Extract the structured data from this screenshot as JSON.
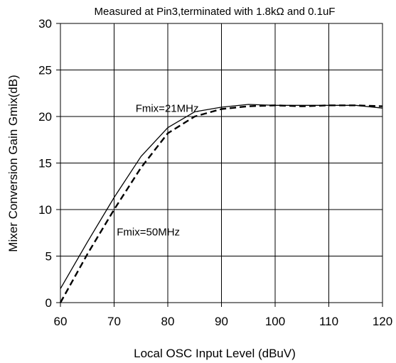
{
  "chart_data": {
    "type": "line",
    "title": "Measured at Pin3,terminated with 1.8kΩ and 0.1uF",
    "xlabel": "Local OSC Input Level (dBuV)",
    "ylabel": "Mixer Conversion Gain Gmix(dB)",
    "xlim": [
      60,
      120
    ],
    "ylim": [
      0,
      30
    ],
    "xticks": [
      "60",
      "70",
      "80",
      "90",
      "100",
      "110",
      "120"
    ],
    "yticks": [
      "0",
      "5",
      "10",
      "15",
      "20",
      "25",
      "30"
    ],
    "grid": true,
    "legend": "none",
    "series": [
      {
        "name": "Fmix=21MHz",
        "style": "solid",
        "color": "#000000",
        "x": [
          60,
          65,
          70,
          75,
          80,
          85,
          90,
          95,
          100,
          105,
          110,
          115,
          120
        ],
        "y": [
          1.5,
          6.5,
          11.3,
          15.7,
          18.8,
          20.5,
          21.0,
          21.3,
          21.2,
          21.2,
          21.2,
          21.2,
          20.9
        ]
      },
      {
        "name": "Fmix=50MHz",
        "style": "dashed",
        "color": "#000000",
        "x": [
          60,
          65,
          70,
          75,
          80,
          85,
          90,
          95,
          100,
          105,
          110,
          115,
          120
        ],
        "y": [
          0.0,
          5.2,
          10.0,
          14.5,
          18.2,
          20.0,
          20.8,
          21.1,
          21.2,
          21.1,
          21.2,
          21.2,
          21.1
        ]
      }
    ],
    "annotations": [
      {
        "text": "Fmix=21MHz",
        "x": 74,
        "y": 20.5
      },
      {
        "text": "Fmix=50MHz",
        "x": 70.5,
        "y": 7.2
      }
    ]
  }
}
